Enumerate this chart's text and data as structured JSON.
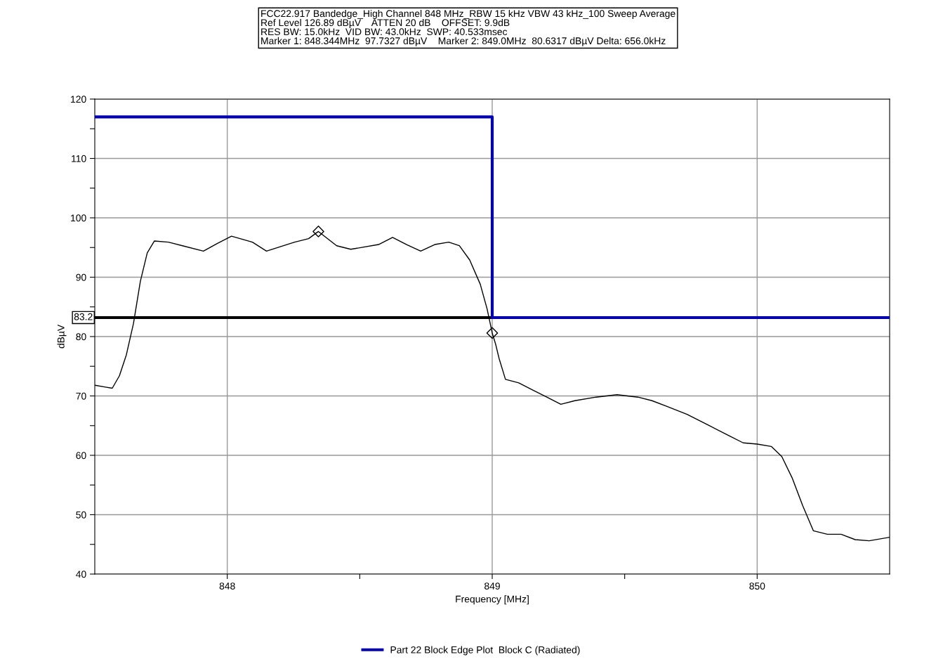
{
  "chart_data": {
    "type": "line",
    "title": "FCC22.917 Bandedge_High Channel 848 MHz_RBW 15 kHz VBW 43 kHz_100 Sweep Average\nRef Level 126.89 dBµV    ATTEN 20 dB    OFFSET: 9.9dB\nRES BW: 15.0kHz  VID BW: 43.0kHz  SWP: 40.533msec\nMarker 1: 848.344MHz  97.7327 dBµV    Marker 2: 849.0MHz  80.6317 dBµV Delta: 656.0kHz",
    "xlabel": "Frequency [MHz]",
    "ylabel": "dBµV",
    "xlim": [
      847.5,
      850.5
    ],
    "ylim": [
      40,
      120
    ],
    "xticks": [
      848,
      {
        "value": 848.5,
        "label": null
      },
      849,
      {
        "value": 849.5,
        "label": null
      },
      850
    ],
    "yticks": [
      40,
      {
        "value": 45,
        "label": null
      },
      50,
      {
        "value": 55,
        "label": null
      },
      60,
      {
        "value": 65,
        "label": null
      },
      70,
      {
        "value": 75,
        "label": null
      },
      80,
      {
        "value": 85,
        "label": null
      },
      90,
      {
        "value": 95,
        "label": null
      },
      100,
      {
        "value": 105,
        "label": null
      },
      110,
      {
        "value": 115,
        "label": null
      },
      120
    ],
    "grid": true,
    "legend": "bottom",
    "ref_lines": [
      {
        "axis": "y",
        "value": 83.2,
        "label": "83.2",
        "color": "#000000"
      }
    ],
    "series": [
      {
        "color": "#000000",
        "x": [
          847.5,
          847.54,
          847.566,
          847.593,
          847.619,
          847.646,
          847.672,
          847.698,
          847.725,
          847.778,
          847.831,
          847.91,
          847.963,
          848.016,
          848.095,
          848.148,
          848.254,
          848.307,
          848.344,
          848.413,
          848.466,
          848.571,
          848.624,
          848.677,
          848.73,
          848.783,
          848.836,
          848.876,
          848.915,
          848.955,
          848.981,
          849.0,
          849.013,
          849.026,
          849.05,
          849.1,
          849.153,
          849.206,
          849.259,
          849.312,
          849.392,
          849.471,
          849.55,
          849.603,
          849.656,
          849.735,
          849.815,
          849.894,
          849.947,
          850.0,
          850.053,
          850.093,
          850.132,
          850.172,
          850.212,
          850.265,
          850.317,
          850.37,
          850.423,
          850.5
        ],
        "values": [
          71.8,
          71.5,
          71.3,
          73.4,
          76.9,
          82.2,
          89.3,
          94.1,
          96.1,
          95.9,
          95.3,
          94.4,
          95.7,
          96.9,
          95.9,
          94.4,
          95.9,
          96.5,
          97.7,
          95.3,
          94.7,
          95.5,
          96.7,
          95.5,
          94.4,
          95.5,
          95.9,
          95.3,
          92.9,
          88.8,
          84.6,
          80.6,
          78.7,
          76.3,
          72.8,
          72.2,
          71.0,
          69.8,
          68.6,
          69.2,
          69.8,
          70.2,
          69.8,
          69.2,
          68.3,
          66.9,
          65.1,
          63.3,
          62.1,
          61.9,
          61.5,
          59.8,
          56.2,
          51.5,
          47.3,
          46.7,
          46.7,
          45.8,
          45.6,
          46.2
        ]
      },
      {
        "type": "scatter",
        "color": "#000000",
        "marker": "diamond",
        "x": [
          848.344,
          849.0
        ],
        "values": [
          97.7,
          80.6
        ]
      },
      {
        "name": "Part 22 Block Edge Plot  Block C (Radiated)",
        "color": "#0000b0",
        "x": [
          847.5,
          849.0,
          849.0,
          850.5
        ],
        "values": [
          117,
          117,
          83.2,
          83.2
        ]
      }
    ]
  }
}
